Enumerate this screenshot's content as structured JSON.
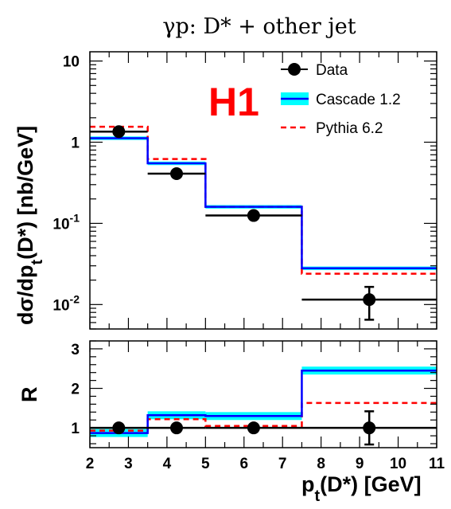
{
  "chart_data": [
    {
      "type": "line",
      "title": "γp:  D* + other jet",
      "xlabel": "",
      "ylabel": "dσ/dpt(D*)  [nb/GeV]",
      "ylabel_main": "dσ/dp",
      "ylabel_sub": "t",
      "ylabel_rest": "(D*)  [nb/GeV]",
      "experiment_label": "H1",
      "yscale": "log",
      "xlim": [
        2,
        11
      ],
      "ylim": [
        0.005,
        13
      ],
      "ytick_labels": [
        {
          "value": 10,
          "base": "10",
          "exp": ""
        },
        {
          "value": 1,
          "base": "1",
          "exp": ""
        },
        {
          "value": 0.1,
          "base": "10",
          "exp": "-1"
        },
        {
          "value": 0.01,
          "base": "10",
          "exp": "-2"
        }
      ],
      "bin_edges": [
        2,
        3.5,
        5,
        7.5,
        11
      ],
      "series": [
        {
          "name": "Data",
          "x": [
            2.75,
            4.25,
            6.25,
            9.25
          ],
          "values": [
            1.35,
            0.41,
            0.125,
            0.0115
          ],
          "y_err": [
            0.1,
            0.03,
            0.012,
            0.005
          ],
          "color": "#000000"
        },
        {
          "name": "Cascade 1.2",
          "values": [
            1.12,
            0.55,
            0.16,
            0.028
          ],
          "band": 0.05,
          "color": "#0000ff",
          "band_color": "#00ffff"
        },
        {
          "name": "Pythia 6.2",
          "values": [
            1.55,
            0.62,
            0.16,
            0.024
          ],
          "color": "#ff0000"
        }
      ],
      "legend_position": "top-right"
    },
    {
      "type": "line",
      "title": "",
      "xlabel": "pt(D*) [GeV]",
      "xlabel_main": "p",
      "xlabel_sub": "t",
      "xlabel_rest": "(D*) [GeV]",
      "ylabel": "R",
      "xlim": [
        2,
        11
      ],
      "ylim": [
        0.5,
        3.2
      ],
      "xticks": [
        2,
        3,
        4,
        5,
        6,
        7,
        8,
        9,
        10,
        11
      ],
      "yticks": [
        1,
        2,
        3
      ],
      "bin_edges": [
        2,
        3.5,
        5,
        7.5,
        11
      ],
      "series": [
        {
          "name": "Data",
          "x": [
            2.75,
            4.25,
            6.25,
            9.25
          ],
          "values": [
            1.0,
            1.0,
            1.0,
            1.0
          ],
          "y_err": [
            0.05,
            0.05,
            0.05,
            0.42
          ],
          "color": "#000000"
        },
        {
          "name": "Cascade 1.2",
          "values": [
            0.87,
            1.32,
            1.3,
            2.45
          ],
          "band": 0.1,
          "color": "#0000ff",
          "band_color": "#00ffff"
        },
        {
          "name": "Pythia 6.2",
          "values": [
            0.93,
            1.22,
            1.05,
            1.63
          ],
          "color": "#ff0000"
        }
      ]
    }
  ]
}
